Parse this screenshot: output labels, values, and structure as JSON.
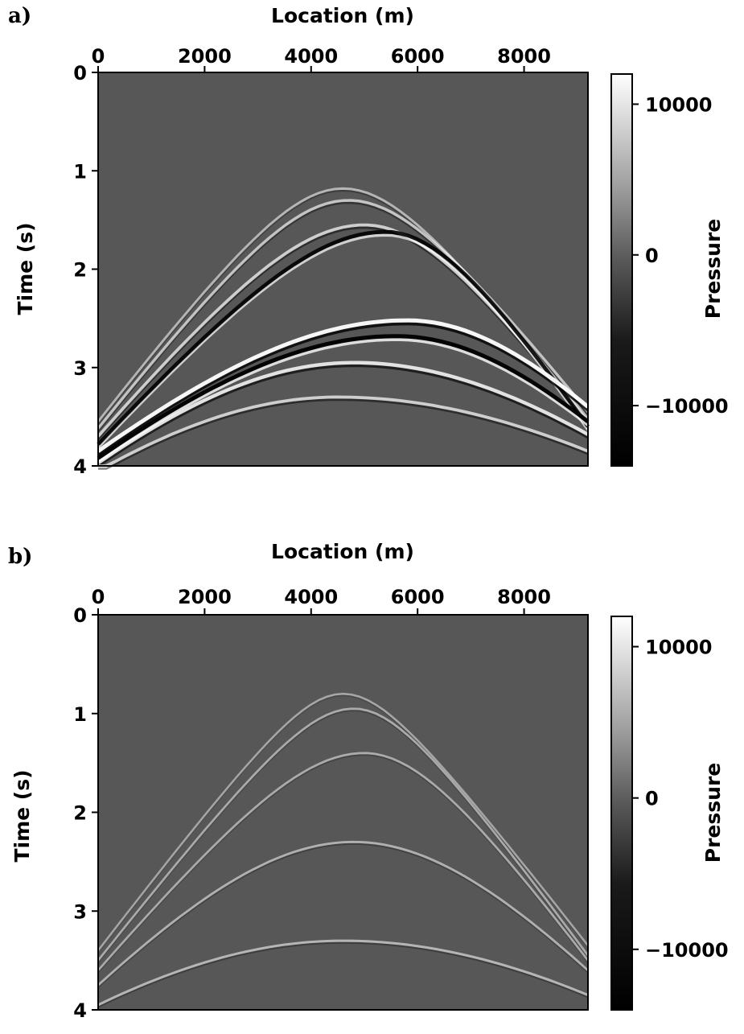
{
  "chart_data": [
    {
      "panel_label": "a)",
      "type": "heatmap",
      "colormap": "grayscale",
      "xlabel": "Location (m)",
      "ylabel": "Time (s)",
      "xlim": [
        0,
        9200
      ],
      "ylim": [
        4,
        0
      ],
      "xticks": [
        0,
        2000,
        4000,
        6000,
        8000
      ],
      "yticks": [
        0,
        1,
        2,
        3,
        4
      ],
      "colorbar": {
        "label": "Pressure",
        "ticks": [
          10000,
          0,
          -10000
        ],
        "tick_labels": [
          "10000",
          "0",
          "−10000"
        ],
        "range": [
          -14000,
          12000
        ]
      },
      "background_value": 0,
      "events": [
        {
          "apex_x": 4600,
          "apex_t": 1.18,
          "left_t": 3.55,
          "right_t": 3.52,
          "amp": 0.35
        },
        {
          "apex_x": 4700,
          "apex_t": 1.3,
          "left_t": 3.62,
          "right_t": 3.45,
          "amp": 0.5
        },
        {
          "apex_x": 5000,
          "apex_t": 1.55,
          "left_t": 3.7,
          "right_t": 3.55,
          "amp": 0.6
        },
        {
          "apex_x": 5400,
          "apex_t": 1.62,
          "left_t": 3.78,
          "right_t": 3.6,
          "amp": -0.9
        },
        {
          "apex_x": 5800,
          "apex_t": 2.52,
          "left_t": 3.85,
          "right_t": 3.4,
          "amp": 1.0
        },
        {
          "apex_x": 5600,
          "apex_t": 2.68,
          "left_t": 3.92,
          "right_t": 3.55,
          "amp": -1.0
        },
        {
          "apex_x": 4800,
          "apex_t": 2.95,
          "left_t": 3.97,
          "right_t": 3.68,
          "amp": 0.8
        },
        {
          "apex_x": 4500,
          "apex_t": 3.3,
          "left_t": 4.05,
          "right_t": 3.85,
          "amp": 0.6
        }
      ]
    },
    {
      "panel_label": "b)",
      "type": "heatmap",
      "colormap": "grayscale",
      "xlabel": "Location (m)",
      "ylabel": "Time (s)",
      "xlim": [
        0,
        9200
      ],
      "ylim": [
        4,
        0
      ],
      "xticks": [
        0,
        2000,
        4000,
        6000,
        8000
      ],
      "yticks": [
        0,
        1,
        2,
        3,
        4
      ],
      "colorbar": {
        "label": "Pressure",
        "ticks": [
          10000,
          0,
          -10000
        ],
        "tick_labels": [
          "10000",
          "0",
          "−10000"
        ],
        "range": [
          -14000,
          12000
        ]
      },
      "background_value": 0,
      "events": [
        {
          "apex_x": 4600,
          "apex_t": 0.8,
          "left_t": 3.4,
          "right_t": 3.35,
          "amp": 0.2
        },
        {
          "apex_x": 4800,
          "apex_t": 0.95,
          "left_t": 3.5,
          "right_t": 3.45,
          "amp": 0.25
        },
        {
          "apex_x": 5000,
          "apex_t": 1.4,
          "left_t": 3.6,
          "right_t": 3.5,
          "amp": 0.25
        },
        {
          "apex_x": 4800,
          "apex_t": 2.3,
          "left_t": 3.75,
          "right_t": 3.6,
          "amp": 0.3
        },
        {
          "apex_x": 4600,
          "apex_t": 3.3,
          "left_t": 3.95,
          "right_t": 3.85,
          "amp": 0.35
        }
      ]
    }
  ]
}
